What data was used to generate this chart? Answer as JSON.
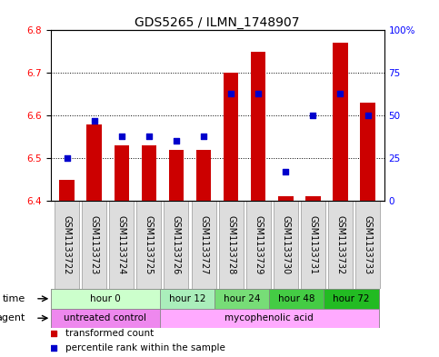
{
  "title": "GDS5265 / ILMN_1748907",
  "samples": [
    "GSM1133722",
    "GSM1133723",
    "GSM1133724",
    "GSM1133725",
    "GSM1133726",
    "GSM1133727",
    "GSM1133728",
    "GSM1133729",
    "GSM1133730",
    "GSM1133731",
    "GSM1133732",
    "GSM1133733"
  ],
  "transformed_count": [
    6.45,
    6.58,
    6.53,
    6.53,
    6.52,
    6.52,
    6.7,
    6.75,
    6.41,
    6.41,
    6.77,
    6.63
  ],
  "percentile_rank": [
    25,
    47,
    38,
    38,
    35,
    38,
    63,
    63,
    17,
    50,
    63,
    50
  ],
  "ylim_left": [
    6.4,
    6.8
  ],
  "ylim_right": [
    0,
    100
  ],
  "yticks_left": [
    6.4,
    6.5,
    6.6,
    6.7,
    6.8
  ],
  "yticks_right": [
    0,
    25,
    50,
    75,
    100
  ],
  "ytick_labels_right": [
    "0",
    "25",
    "50",
    "75",
    "100%"
  ],
  "bar_color": "#cc0000",
  "dot_color": "#0000cc",
  "baseline": 6.4,
  "time_groups": [
    {
      "label": "hour 0",
      "start": 0,
      "end": 4,
      "color": "#ccffcc"
    },
    {
      "label": "hour 12",
      "start": 4,
      "end": 6,
      "color": "#aaeebb"
    },
    {
      "label": "hour 24",
      "start": 6,
      "end": 8,
      "color": "#77dd77"
    },
    {
      "label": "hour 48",
      "start": 8,
      "end": 10,
      "color": "#44cc44"
    },
    {
      "label": "hour 72",
      "start": 10,
      "end": 12,
      "color": "#22bb22"
    }
  ],
  "agent_groups": [
    {
      "label": "untreated control",
      "start": 0,
      "end": 4,
      "color": "#ee88ee"
    },
    {
      "label": "mycophenolic acid",
      "start": 4,
      "end": 12,
      "color": "#ffaaff"
    }
  ],
  "legend_items": [
    {
      "label": "transformed count",
      "color": "#cc0000",
      "marker": "s"
    },
    {
      "label": "percentile rank within the sample",
      "color": "#0000cc",
      "marker": "s"
    }
  ],
  "grid_color": "black",
  "grid_style": "dotted",
  "background_color": "white",
  "plot_bg_color": "white",
  "title_fontsize": 10,
  "tick_fontsize": 7.5,
  "label_fontsize": 8,
  "xtick_fontsize": 7,
  "bar_width": 0.55,
  "dot_size": 22,
  "xticklabel_bg": "#dddddd"
}
